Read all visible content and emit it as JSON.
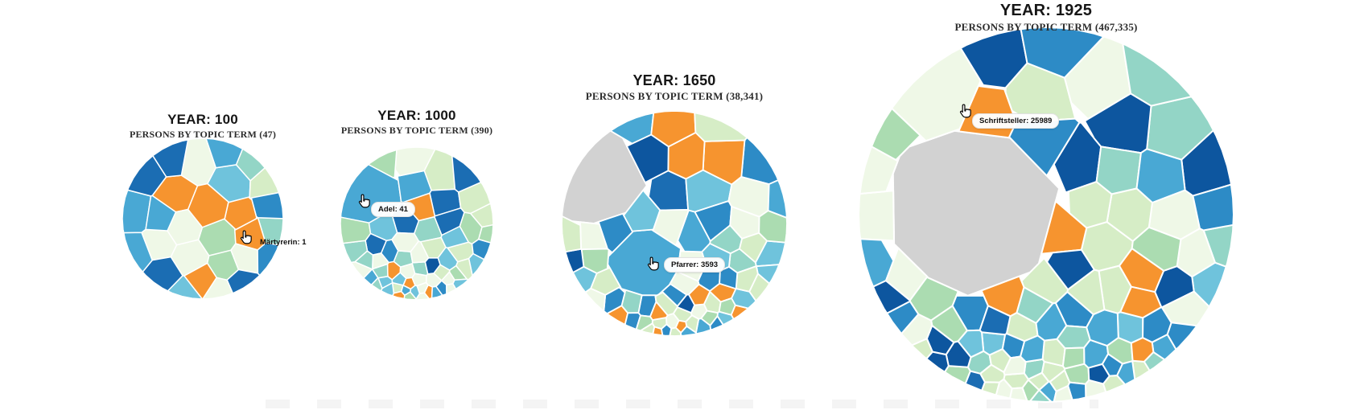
{
  "page": {
    "background": "#ffffff"
  },
  "charts": [
    {
      "id": "year-100",
      "title": "YEAR: 100",
      "subtitle": "PERSONS BY TOPIC TERM (47)",
      "tooltip_label": "Märtyrerin: 1"
    },
    {
      "id": "year-1000",
      "title": "YEAR: 1000",
      "subtitle": "PERSONS BY TOPIC TERM (390)",
      "tooltip_label": "Adel: 41"
    },
    {
      "id": "year-1650",
      "title": "YEAR: 1650",
      "subtitle": "PERSONS BY TOPIC TERM (38,341)",
      "tooltip_label": "Pfarrer: 3593"
    },
    {
      "id": "year-1925",
      "title": "YEAR: 1925",
      "subtitle": "PERSONS BY TOPIC TERM (467,335)",
      "tooltip_label": "Schriftsteller: 25989"
    }
  ],
  "palette": {
    "cell_border": "#ffffff",
    "names": [
      "cream",
      "light_green",
      "green",
      "seafoam",
      "sky_light",
      "sky",
      "medium_blue",
      "blue",
      "navy",
      "orange"
    ],
    "colors": [
      "#eff8e7",
      "#d6edc6",
      "#abdcb1",
      "#93d5c6",
      "#6fc3dc",
      "#49a8d4",
      "#2d8bc6",
      "#1b6db3",
      "#0d569f",
      "#f6942f"
    ],
    "weights": [
      17,
      16,
      12,
      8,
      8,
      10,
      10,
      9,
      6,
      9
    ],
    "special_gray": "#d2d2d2"
  },
  "chart_data": {
    "type": "voronoi-treemap",
    "description": "Circular Voronoi treemaps of persons by topic term over time; one hovered cell per chart shows a tooltip",
    "charts": [
      {
        "year": 100,
        "title": "YEAR: 100",
        "subtitle": "PERSONS BY TOPIC TERM (47)",
        "total_persons": 47,
        "highlighted": {
          "term": "Märtyrerin",
          "count": 1
        }
      },
      {
        "year": 1000,
        "title": "YEAR: 1000",
        "subtitle": "PERSONS BY TOPIC TERM (390)",
        "total_persons": 390,
        "highlighted": {
          "term": "Adel",
          "count": 41
        }
      },
      {
        "year": 1650,
        "title": "YEAR: 1650",
        "subtitle": "PERSONS BY TOPIC TERM (38,341)",
        "total_persons": 38341,
        "highlighted": {
          "term": "Pfarrer",
          "count": 3593
        }
      },
      {
        "year": 1925,
        "title": "YEAR: 1925",
        "subtitle": "PERSONS BY TOPIC TERM (467,335)",
        "total_persons": 467335,
        "highlighted": {
          "term": "Schriftsteller",
          "count": 25989
        }
      }
    ],
    "legend": "none",
    "grid": false
  }
}
